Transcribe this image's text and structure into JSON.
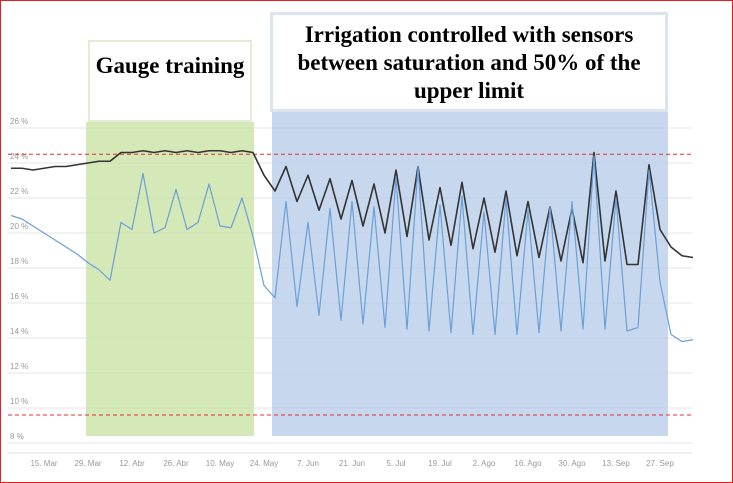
{
  "chart_data": {
    "type": "line",
    "annotations": [
      "Gauge training",
      "Irrigation controlled with sensors between saturation and 50% of the upper limit"
    ],
    "categories": [
      null,
      null,
      null,
      "15. Mar",
      null,
      null,
      null,
      "29. Mar",
      null,
      null,
      null,
      "12. Abr",
      null,
      null,
      null,
      "26. Abr",
      null,
      null,
      null,
      "10. May",
      null,
      null,
      null,
      "24. May",
      null,
      null,
      null,
      "7. Jun",
      null,
      null,
      null,
      "21. Jun",
      null,
      null,
      null,
      "5. Jul",
      null,
      null,
      null,
      "19. Jul",
      null,
      null,
      null,
      "2. Ago",
      null,
      null,
      null,
      "16. Ago",
      null,
      null,
      null,
      "30. Ago",
      null,
      null,
      null,
      "13. Sep",
      null,
      null,
      null,
      "27. Sep",
      null,
      null,
      null
    ],
    "series": [
      {
        "color": "#333333",
        "values": [
          23.7,
          23.7,
          23.6,
          23.7,
          23.8,
          23.8,
          23.9,
          24.0,
          24.1,
          24.1,
          24.6,
          24.6,
          24.7,
          24.6,
          24.7,
          24.6,
          24.7,
          24.6,
          24.7,
          24.7,
          24.6,
          24.7,
          24.6,
          23.3,
          22.4,
          23.8,
          21.8,
          23.3,
          21.3,
          23.1,
          20.8,
          23.0,
          20.4,
          22.8,
          20.0,
          23.6,
          19.8,
          23.8,
          19.6,
          22.6,
          19.3,
          22.9,
          19.1,
          22.0,
          18.9,
          22.4,
          18.7,
          21.8,
          18.6,
          21.5,
          18.4,
          21.4,
          18.3,
          24.6,
          18.4,
          22.4,
          18.2,
          18.2,
          23.9,
          20.2,
          19.2,
          18.7,
          18.6
        ]
      },
      {
        "color": "#6a9fd8",
        "values": [
          21.0,
          20.8,
          20.4,
          20.0,
          19.6,
          19.2,
          18.8,
          18.3,
          17.9,
          17.3,
          20.6,
          20.2,
          23.4,
          20.0,
          20.3,
          22.5,
          20.2,
          20.6,
          22.8,
          20.4,
          20.3,
          22.0,
          19.8,
          17.0,
          16.3,
          21.8,
          15.8,
          20.6,
          15.3,
          21.4,
          15.0,
          21.8,
          14.8,
          21.5,
          14.6,
          23.2,
          14.5,
          23.8,
          14.4,
          21.6,
          14.3,
          22.1,
          14.2,
          21.2,
          14.2,
          22.0,
          14.2,
          21.3,
          14.3,
          21.5,
          14.4,
          21.8,
          14.5,
          24.4,
          14.5,
          22.0,
          14.4,
          14.6,
          23.6,
          17.2,
          14.2,
          13.8,
          13.9
        ]
      }
    ],
    "reference_lines": {
      "color": "#e03030",
      "values": [
        24.5,
        9.6
      ]
    },
    "ylim": [
      8,
      26
    ],
    "yticks": [
      {
        "value": 8,
        "label": "8 %"
      },
      {
        "value": 10,
        "label": "10 %"
      },
      {
        "value": 12,
        "label": "12 %"
      },
      {
        "value": 14,
        "label": "14 %"
      },
      {
        "value": 16,
        "label": "16 %"
      },
      {
        "value": 18,
        "label": "18 %"
      },
      {
        "value": 20,
        "label": "20 %"
      },
      {
        "value": 22,
        "label": "22 %"
      },
      {
        "value": 24,
        "label": "24 %"
      },
      {
        "value": 26,
        "label": "26 %"
      }
    ],
    "grid": true
  }
}
